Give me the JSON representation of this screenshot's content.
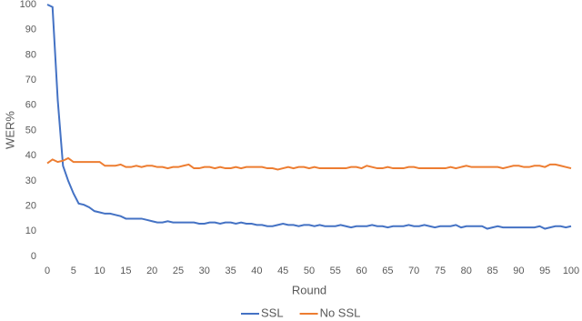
{
  "chart_data": {
    "type": "line",
    "xlabel": "Round",
    "ylabel": "WER%",
    "x": [
      0,
      1,
      2,
      3,
      4,
      5,
      6,
      7,
      8,
      9,
      10,
      11,
      12,
      13,
      14,
      15,
      16,
      17,
      18,
      19,
      20,
      21,
      22,
      23,
      24,
      25,
      26,
      27,
      28,
      29,
      30,
      31,
      32,
      33,
      34,
      35,
      36,
      37,
      38,
      39,
      40,
      41,
      42,
      43,
      44,
      45,
      46,
      47,
      48,
      49,
      50,
      51,
      52,
      53,
      54,
      55,
      56,
      57,
      58,
      59,
      60,
      61,
      62,
      63,
      64,
      65,
      66,
      67,
      68,
      69,
      70,
      71,
      72,
      73,
      74,
      75,
      76,
      77,
      78,
      79,
      80,
      81,
      82,
      83,
      84,
      85,
      86,
      87,
      88,
      89,
      90,
      91,
      92,
      93,
      94,
      95,
      96,
      97,
      98,
      99,
      100
    ],
    "series": [
      {
        "name": "SSL",
        "color": "#4472c4",
        "values": [
          100,
          99,
          62,
          36,
          30,
          25,
          21,
          20.5,
          19.5,
          18,
          17.5,
          17,
          17,
          16.5,
          16,
          15,
          15,
          15,
          15,
          14.5,
          14,
          13.5,
          13.5,
          14,
          13.5,
          13.5,
          13.5,
          13.5,
          13.5,
          13,
          13,
          13.5,
          13.5,
          13,
          13.5,
          13.5,
          13,
          13.5,
          13,
          13,
          12.5,
          12.5,
          12,
          12,
          12.5,
          13,
          12.5,
          12.5,
          12,
          12.5,
          12.5,
          12,
          12.5,
          12,
          12,
          12,
          12.5,
          12,
          11.5,
          12,
          12,
          12,
          12.5,
          12,
          12,
          11.5,
          12,
          12,
          12,
          12.5,
          12,
          12,
          12.5,
          12,
          11.5,
          12,
          12,
          12,
          12.5,
          11.5,
          12,
          12,
          12,
          12,
          11,
          11.5,
          12,
          11.5,
          11.5,
          11.5,
          11.5,
          11.5,
          11.5,
          11.5,
          12,
          11,
          11.5,
          12,
          12,
          11.5,
          12
        ]
      },
      {
        "name": "No SSL",
        "color": "#ed7d31",
        "values": [
          37,
          38.5,
          37.5,
          38,
          39,
          37.5,
          37.5,
          37.5,
          37.5,
          37.5,
          37.5,
          36,
          36,
          36,
          36.5,
          35.5,
          35.5,
          36,
          35.5,
          36,
          36,
          35.5,
          35.5,
          35,
          35.5,
          35.5,
          36,
          36.5,
          35,
          35,
          35.5,
          35.5,
          35,
          35.5,
          35,
          35,
          35.5,
          35,
          35.5,
          35.5,
          35.5,
          35.5,
          35,
          35,
          34.5,
          35,
          35.5,
          35,
          35.5,
          35.5,
          35,
          35.5,
          35,
          35,
          35,
          35,
          35,
          35,
          35.5,
          35.5,
          35,
          36,
          35.5,
          35,
          35,
          35.5,
          35,
          35,
          35,
          35.5,
          35.5,
          35,
          35,
          35,
          35,
          35,
          35,
          35.5,
          35,
          35.5,
          36,
          35.5,
          35.5,
          35.5,
          35.5,
          35.5,
          35.5,
          35,
          35.5,
          36,
          36,
          35.5,
          35.5,
          36,
          36,
          35.5,
          36.5,
          36.5,
          36,
          35.5,
          35
        ]
      }
    ],
    "xlim": [
      0,
      100
    ],
    "xticks": [
      0,
      5,
      10,
      15,
      20,
      25,
      30,
      35,
      40,
      45,
      50,
      55,
      60,
      65,
      70,
      75,
      80,
      85,
      90,
      95,
      100
    ],
    "ylim": [
      0,
      100
    ],
    "yticks": [
      0,
      10,
      20,
      30,
      40,
      50,
      60,
      70,
      80,
      90,
      100
    ],
    "grid": false,
    "legend": "bottom"
  }
}
